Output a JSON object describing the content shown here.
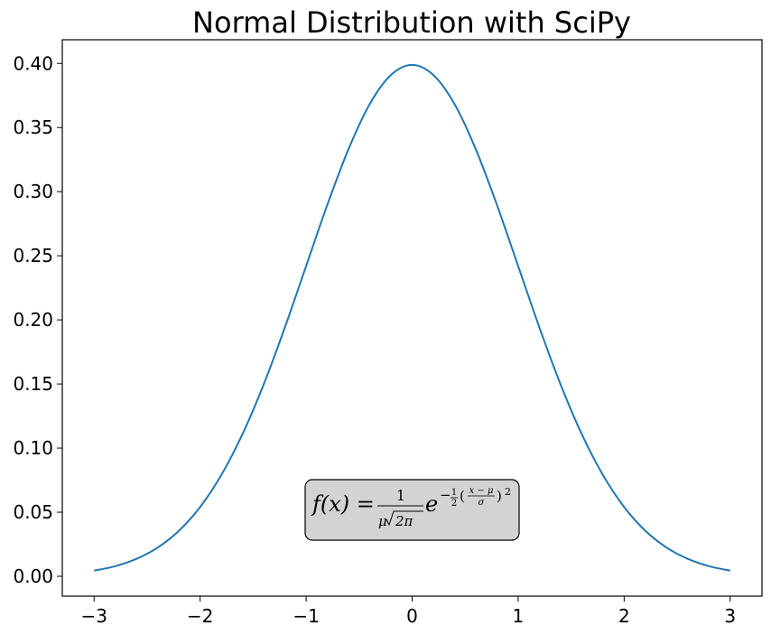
{
  "chart_data": {
    "type": "line",
    "title": "Normal Distribution with SciPy",
    "xlabel": "",
    "ylabel": "",
    "xlim": [
      -3.3,
      3.3
    ],
    "ylim": [
      -0.0155,
      0.4185
    ],
    "grid": false,
    "x_ticks": [
      {
        "value": -3,
        "label": "−3"
      },
      {
        "value": -2,
        "label": "−2"
      },
      {
        "value": -1,
        "label": "−1"
      },
      {
        "value": 0,
        "label": "0"
      },
      {
        "value": 1,
        "label": "1"
      },
      {
        "value": 2,
        "label": "2"
      },
      {
        "value": 3,
        "label": "3"
      }
    ],
    "y_ticks": [
      {
        "value": 0.0,
        "label": "0.00"
      },
      {
        "value": 0.05,
        "label": "0.05"
      },
      {
        "value": 0.1,
        "label": "0.10"
      },
      {
        "value": 0.15,
        "label": "0.15"
      },
      {
        "value": 0.2,
        "label": "0.20"
      },
      {
        "value": 0.25,
        "label": "0.25"
      },
      {
        "value": 0.3,
        "label": "0.30"
      },
      {
        "value": 0.35,
        "label": "0.35"
      },
      {
        "value": 0.4,
        "label": "0.40"
      }
    ],
    "series": [
      {
        "color": "#1f77b4",
        "x": [
          -3.0,
          -2.8,
          -2.6,
          -2.4,
          -2.2,
          -2.0,
          -1.8,
          -1.6,
          -1.4,
          -1.2,
          -1.0,
          -0.8,
          -0.6,
          -0.4,
          -0.2,
          0.0,
          0.2,
          0.4,
          0.6,
          0.8,
          1.0,
          1.2,
          1.4,
          1.6,
          1.8,
          2.0,
          2.2,
          2.4,
          2.6,
          2.8,
          3.0
        ],
        "y": [
          0.0044,
          0.0079,
          0.0136,
          0.0224,
          0.0355,
          0.054,
          0.079,
          0.1109,
          0.1497,
          0.1942,
          0.242,
          0.2897,
          0.3332,
          0.3683,
          0.391,
          0.3989,
          0.391,
          0.3683,
          0.3332,
          0.2897,
          0.242,
          0.1942,
          0.1497,
          0.1109,
          0.079,
          0.054,
          0.0355,
          0.0224,
          0.0136,
          0.0079,
          0.0044
        ]
      }
    ],
    "annotation": {
      "lhs": "f(x) = ",
      "frac_num": "1",
      "frac_den_mu": "μ",
      "frac_den_root": "2π",
      "base": "e",
      "exp_sign": "−",
      "exp_half_num": "1",
      "exp_half_den": "2",
      "paren_open": "(",
      "paren_close": ")",
      "inner_num": "x − μ",
      "inner_den": "σ",
      "power": "2",
      "box_color": "#d3d3d3"
    }
  }
}
